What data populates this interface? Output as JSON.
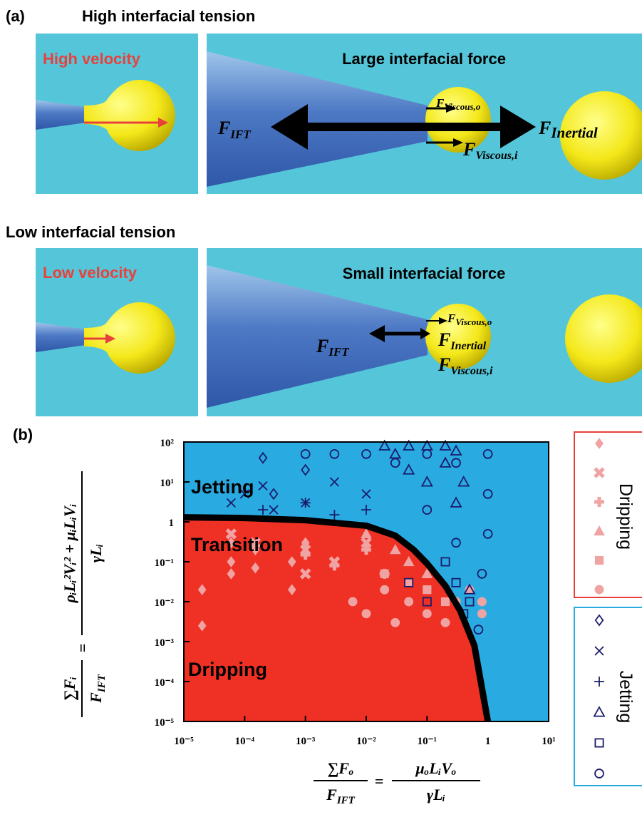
{
  "panel_a": {
    "label": "(a)",
    "rows": [
      {
        "heading": "High interfacial tension",
        "velocity": "High velocity",
        "force_title": "Large interfacial force",
        "f_ift": {
          "symbol": "F",
          "subscript": "IFT"
        },
        "f_viscous_o": {
          "symbol": "F",
          "subscript": "Viscous,o"
        },
        "f_inertial": {
          "symbol": "F",
          "subscript": "Inertial"
        },
        "f_viscous_i": {
          "symbol": "F",
          "subscript": "Viscous,i"
        }
      },
      {
        "heading": "Low interfacial tension",
        "velocity": "Low velocity",
        "force_title": "Small interfacial force",
        "f_ift": {
          "symbol": "F",
          "subscript": "IFT"
        },
        "f_viscous_o": {
          "symbol": "F",
          "subscript": "Viscous,o"
        },
        "f_inertial": {
          "symbol": "F",
          "subscript": "Inertial"
        },
        "f_viscous_i": {
          "symbol": "F",
          "subscript": "Viscous,i"
        }
      }
    ]
  },
  "chart_data": {
    "type": "scatter",
    "label": "(b)",
    "log_x": true,
    "log_y": true,
    "xlim": [
      1e-05,
      10
    ],
    "ylim": [
      1e-05,
      100
    ],
    "xticks": [
      {
        "value": 1e-05,
        "label": "10⁻⁵"
      },
      {
        "value": 0.0001,
        "label": "10⁻⁴"
      },
      {
        "value": 0.001,
        "label": "10⁻³"
      },
      {
        "value": 0.01,
        "label": "10⁻²"
      },
      {
        "value": 0.1,
        "label": "10⁻¹"
      },
      1,
      {
        "value": 10,
        "label": "10¹"
      }
    ],
    "yticks": [
      {
        "value": 1e-05,
        "label": "10⁻⁵"
      },
      {
        "value": 0.0001,
        "label": "10⁻⁴"
      },
      {
        "value": 0.001,
        "label": "10⁻³"
      },
      {
        "value": 0.01,
        "label": "10⁻²"
      },
      {
        "value": 0.1,
        "label": "10⁻¹"
      },
      1,
      {
        "value": 10,
        "label": "10¹"
      },
      {
        "value": 100,
        "label": "10²"
      }
    ],
    "xlabel": {
      "lhs_num": "∑Fₒ",
      "lhs_den": {
        "symbol": "F",
        "subscript": "IFT"
      },
      "eq": "=",
      "rhs_num": "μₒLᵢVₒ",
      "rhs_den": "γLᵢ"
    },
    "ylabel": {
      "lhs_num": "∑Fᵢ",
      "lhs_den": {
        "symbol": "F",
        "subscript": "IFT"
      },
      "eq": "=",
      "rhs_num": "ρᵢLᵢ²Vᵢ² + μᵢLᵢVᵢ",
      "rhs_den": "γLᵢ"
    },
    "annotations": [
      "Jetting",
      "Transition",
      "Dripping"
    ],
    "region_colors": {
      "above": "#29abe2",
      "below": "#ee3124"
    },
    "boundary": {
      "color": "#000000",
      "x": [
        1e-05,
        0.0001,
        0.001,
        0.01,
        0.03,
        0.06,
        0.1,
        0.2,
        0.35,
        0.6,
        1
      ],
      "y": [
        1.3,
        1.25,
        1.1,
        0.8,
        0.45,
        0.2,
        0.09,
        0.025,
        0.006,
        0.0008,
        1e-05
      ]
    },
    "series": [
      {
        "group": "Dripping",
        "marker": "diamond",
        "filled": true,
        "color": "#f0a3a3",
        "x": [
          2e-05,
          2e-05,
          6e-05,
          6e-05,
          6e-05,
          0.00015,
          0.00015,
          0.0006,
          0.0006,
          0.001
        ],
        "y": [
          0.02,
          0.0025,
          0.3,
          0.1,
          0.05,
          0.2,
          0.07,
          0.1,
          0.02,
          0.3
        ]
      },
      {
        "group": "Dripping",
        "marker": "x",
        "filled": true,
        "color": "#f0a3a3",
        "x": [
          6e-05,
          0.00015,
          0.001,
          0.001,
          0.003,
          0.01
        ],
        "y": [
          0.5,
          0.3,
          0.2,
          0.05,
          0.1,
          0.3
        ]
      },
      {
        "group": "Dripping",
        "marker": "plus",
        "filled": true,
        "color": "#f0a3a3",
        "x": [
          0.001,
          0.003,
          0.01,
          0.02
        ],
        "y": [
          0.15,
          0.08,
          0.2,
          0.05
        ]
      },
      {
        "group": "Dripping",
        "marker": "triangle",
        "filled": true,
        "color": "#f0a3a3",
        "x": [
          0.01,
          0.03,
          0.05,
          0.1
        ],
        "y": [
          0.5,
          0.2,
          0.1,
          0.05
        ]
      },
      {
        "group": "Dripping",
        "marker": "square",
        "filled": true,
        "color": "#f0a3a3",
        "x": [
          0.02,
          0.05,
          0.1,
          0.2
        ],
        "y": [
          0.05,
          0.03,
          0.02,
          0.01
        ]
      },
      {
        "group": "Dripping",
        "marker": "circle",
        "filled": true,
        "color": "#f0a3a3",
        "x": [
          0.006,
          0.01,
          0.02,
          0.03,
          0.05,
          0.1,
          0.2,
          0.3,
          0.5,
          0.8,
          0.8
        ],
        "y": [
          0.01,
          0.005,
          0.02,
          0.003,
          0.01,
          0.005,
          0.003,
          0.01,
          0.02,
          0.01,
          0.005
        ]
      },
      {
        "group": "Jetting",
        "marker": "diamond",
        "filled": false,
        "color": "#1b1b6b",
        "x": [
          0.0002,
          0.0003,
          0.001
        ],
        "y": [
          40,
          5,
          20
        ]
      },
      {
        "group": "Jetting",
        "marker": "x",
        "filled": false,
        "color": "#1b1b6b",
        "x": [
          6e-05,
          0.0001,
          0.0002,
          0.0003,
          0.001,
          0.003,
          0.01
        ],
        "y": [
          3,
          5,
          8,
          2,
          3,
          10,
          5
        ]
      },
      {
        "group": "Jetting",
        "marker": "plus",
        "filled": false,
        "color": "#1b1b6b",
        "x": [
          0.0002,
          0.001,
          0.003,
          0.01
        ],
        "y": [
          2,
          3,
          1.5,
          2
        ]
      },
      {
        "group": "Jetting",
        "marker": "triangle",
        "filled": false,
        "color": "#1b1b6b",
        "x": [
          0.02,
          0.03,
          0.05,
          0.1,
          0.2,
          0.3,
          0.05,
          0.1,
          0.2,
          0.4,
          0.3,
          0.5
        ],
        "y": [
          80,
          50,
          80,
          80,
          80,
          60,
          20,
          10,
          30,
          10,
          3,
          0.02
        ]
      },
      {
        "group": "Jetting",
        "marker": "square",
        "filled": false,
        "color": "#1b1b6b",
        "x": [
          0.05,
          0.1,
          0.2,
          0.3,
          0.4,
          0.5
        ],
        "y": [
          0.03,
          0.01,
          0.1,
          0.03,
          0.005,
          0.01
        ]
      },
      {
        "group": "Jetting",
        "marker": "circle",
        "filled": false,
        "color": "#1b1b6b",
        "x": [
          0.001,
          0.003,
          0.01,
          0.03,
          0.1,
          0.3,
          1,
          1,
          1,
          0.1,
          0.3,
          0.8,
          0.7
        ],
        "y": [
          50,
          50,
          50,
          30,
          50,
          30,
          50,
          5,
          0.5,
          2,
          0.3,
          0.05,
          0.002
        ]
      }
    ]
  }
}
